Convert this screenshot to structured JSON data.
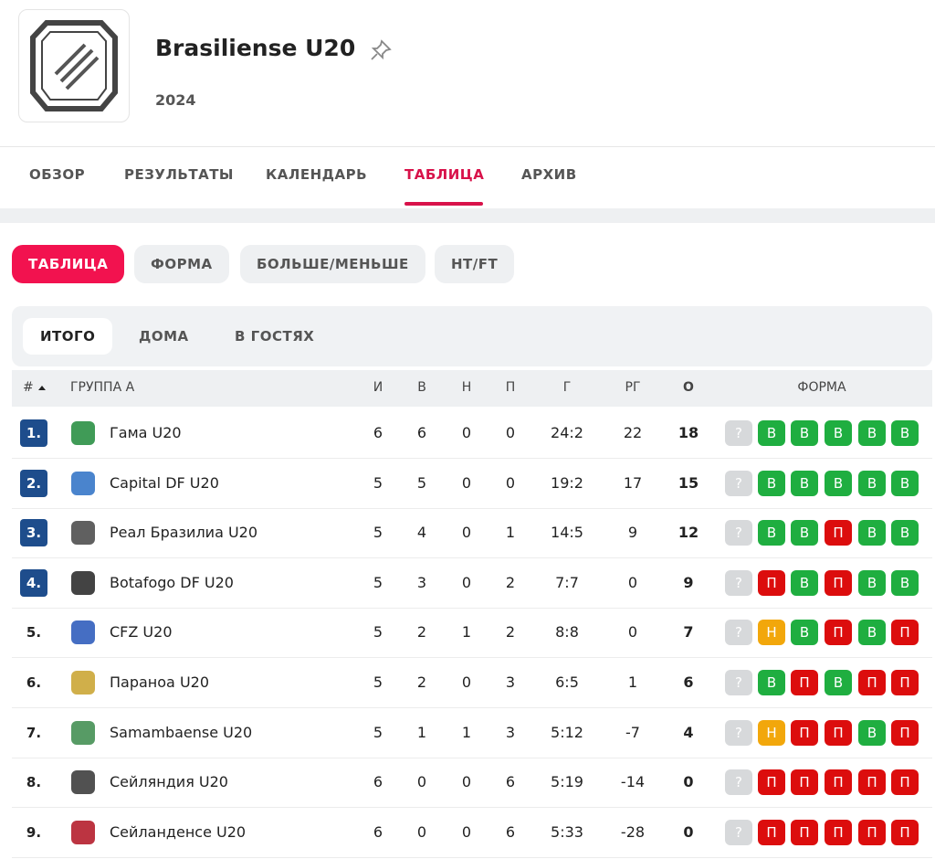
{
  "header": {
    "title": "Brasiliense U20",
    "season": "2024"
  },
  "nav": {
    "tabs": [
      "ОБЗОР",
      "РЕЗУЛЬТАТЫ",
      "КАЛЕНДАРЬ",
      "ТАБЛИЦА",
      "АРХИВ"
    ],
    "active": 3
  },
  "subtabs": {
    "tabs": [
      "ТАБЛИЦА",
      "ФОРМА",
      "БОЛЬШЕ/МЕНЬШЕ",
      "HT/FT"
    ],
    "active": 0
  },
  "filters": {
    "tabs": [
      "ИТОГО",
      "ДОМА",
      "В ГОСТЯХ"
    ],
    "active": 0
  },
  "table": {
    "columns": {
      "rank": "#",
      "team": "ГРУППА А",
      "played": "И",
      "won": "В",
      "drawn": "Н",
      "lost": "П",
      "goals": "Г",
      "goal_diff": "РГ",
      "points": "О",
      "form": "ФОРМА"
    },
    "rows": [
      {
        "rank": "1.",
        "team": "Гама U20",
        "played": 6,
        "won": 6,
        "drawn": 0,
        "lost": 0,
        "goals": "24:2",
        "goal_diff": 22,
        "points": 18,
        "form": [
          "?",
          "В",
          "В",
          "В",
          "В",
          "В"
        ]
      },
      {
        "rank": "2.",
        "team": "Capital DF U20",
        "played": 5,
        "won": 5,
        "drawn": 0,
        "lost": 0,
        "goals": "19:2",
        "goal_diff": 17,
        "points": 15,
        "form": [
          "?",
          "В",
          "В",
          "В",
          "В",
          "В"
        ]
      },
      {
        "rank": "3.",
        "team": "Реал Бразилиа U20",
        "played": 5,
        "won": 4,
        "drawn": 0,
        "lost": 1,
        "goals": "14:5",
        "goal_diff": 9,
        "points": 12,
        "form": [
          "?",
          "В",
          "В",
          "П",
          "В",
          "В"
        ]
      },
      {
        "rank": "4.",
        "team": "Botafogo DF U20",
        "played": 5,
        "won": 3,
        "drawn": 0,
        "lost": 2,
        "goals": "7:7",
        "goal_diff": 0,
        "points": 9,
        "form": [
          "?",
          "П",
          "В",
          "П",
          "В",
          "В"
        ]
      },
      {
        "rank": "5.",
        "team": "CFZ U20",
        "played": 5,
        "won": 2,
        "drawn": 1,
        "lost": 2,
        "goals": "8:8",
        "goal_diff": 0,
        "points": 7,
        "form": [
          "?",
          "Н",
          "В",
          "П",
          "В",
          "П"
        ]
      },
      {
        "rank": "6.",
        "team": "Параноа U20",
        "played": 5,
        "won": 2,
        "drawn": 0,
        "lost": 3,
        "goals": "6:5",
        "goal_diff": 1,
        "points": 6,
        "form": [
          "?",
          "В",
          "П",
          "В",
          "П",
          "П"
        ]
      },
      {
        "rank": "7.",
        "team": "Samambaense U20",
        "played": 5,
        "won": 1,
        "drawn": 1,
        "lost": 3,
        "goals": "5:12",
        "goal_diff": -7,
        "points": 4,
        "form": [
          "?",
          "Н",
          "П",
          "П",
          "В",
          "П"
        ]
      },
      {
        "rank": "8.",
        "team": "Сейляндия U20",
        "played": 6,
        "won": 0,
        "drawn": 0,
        "lost": 6,
        "goals": "5:19",
        "goal_diff": -14,
        "points": 0,
        "form": [
          "?",
          "П",
          "П",
          "П",
          "П",
          "П"
        ]
      },
      {
        "rank": "9.",
        "team": "Сейланденсе U20",
        "played": 6,
        "won": 0,
        "drawn": 0,
        "lost": 6,
        "goals": "5:33",
        "goal_diff": -28,
        "points": 0,
        "form": [
          "?",
          "П",
          "П",
          "П",
          "П",
          "П"
        ]
      }
    ]
  }
}
